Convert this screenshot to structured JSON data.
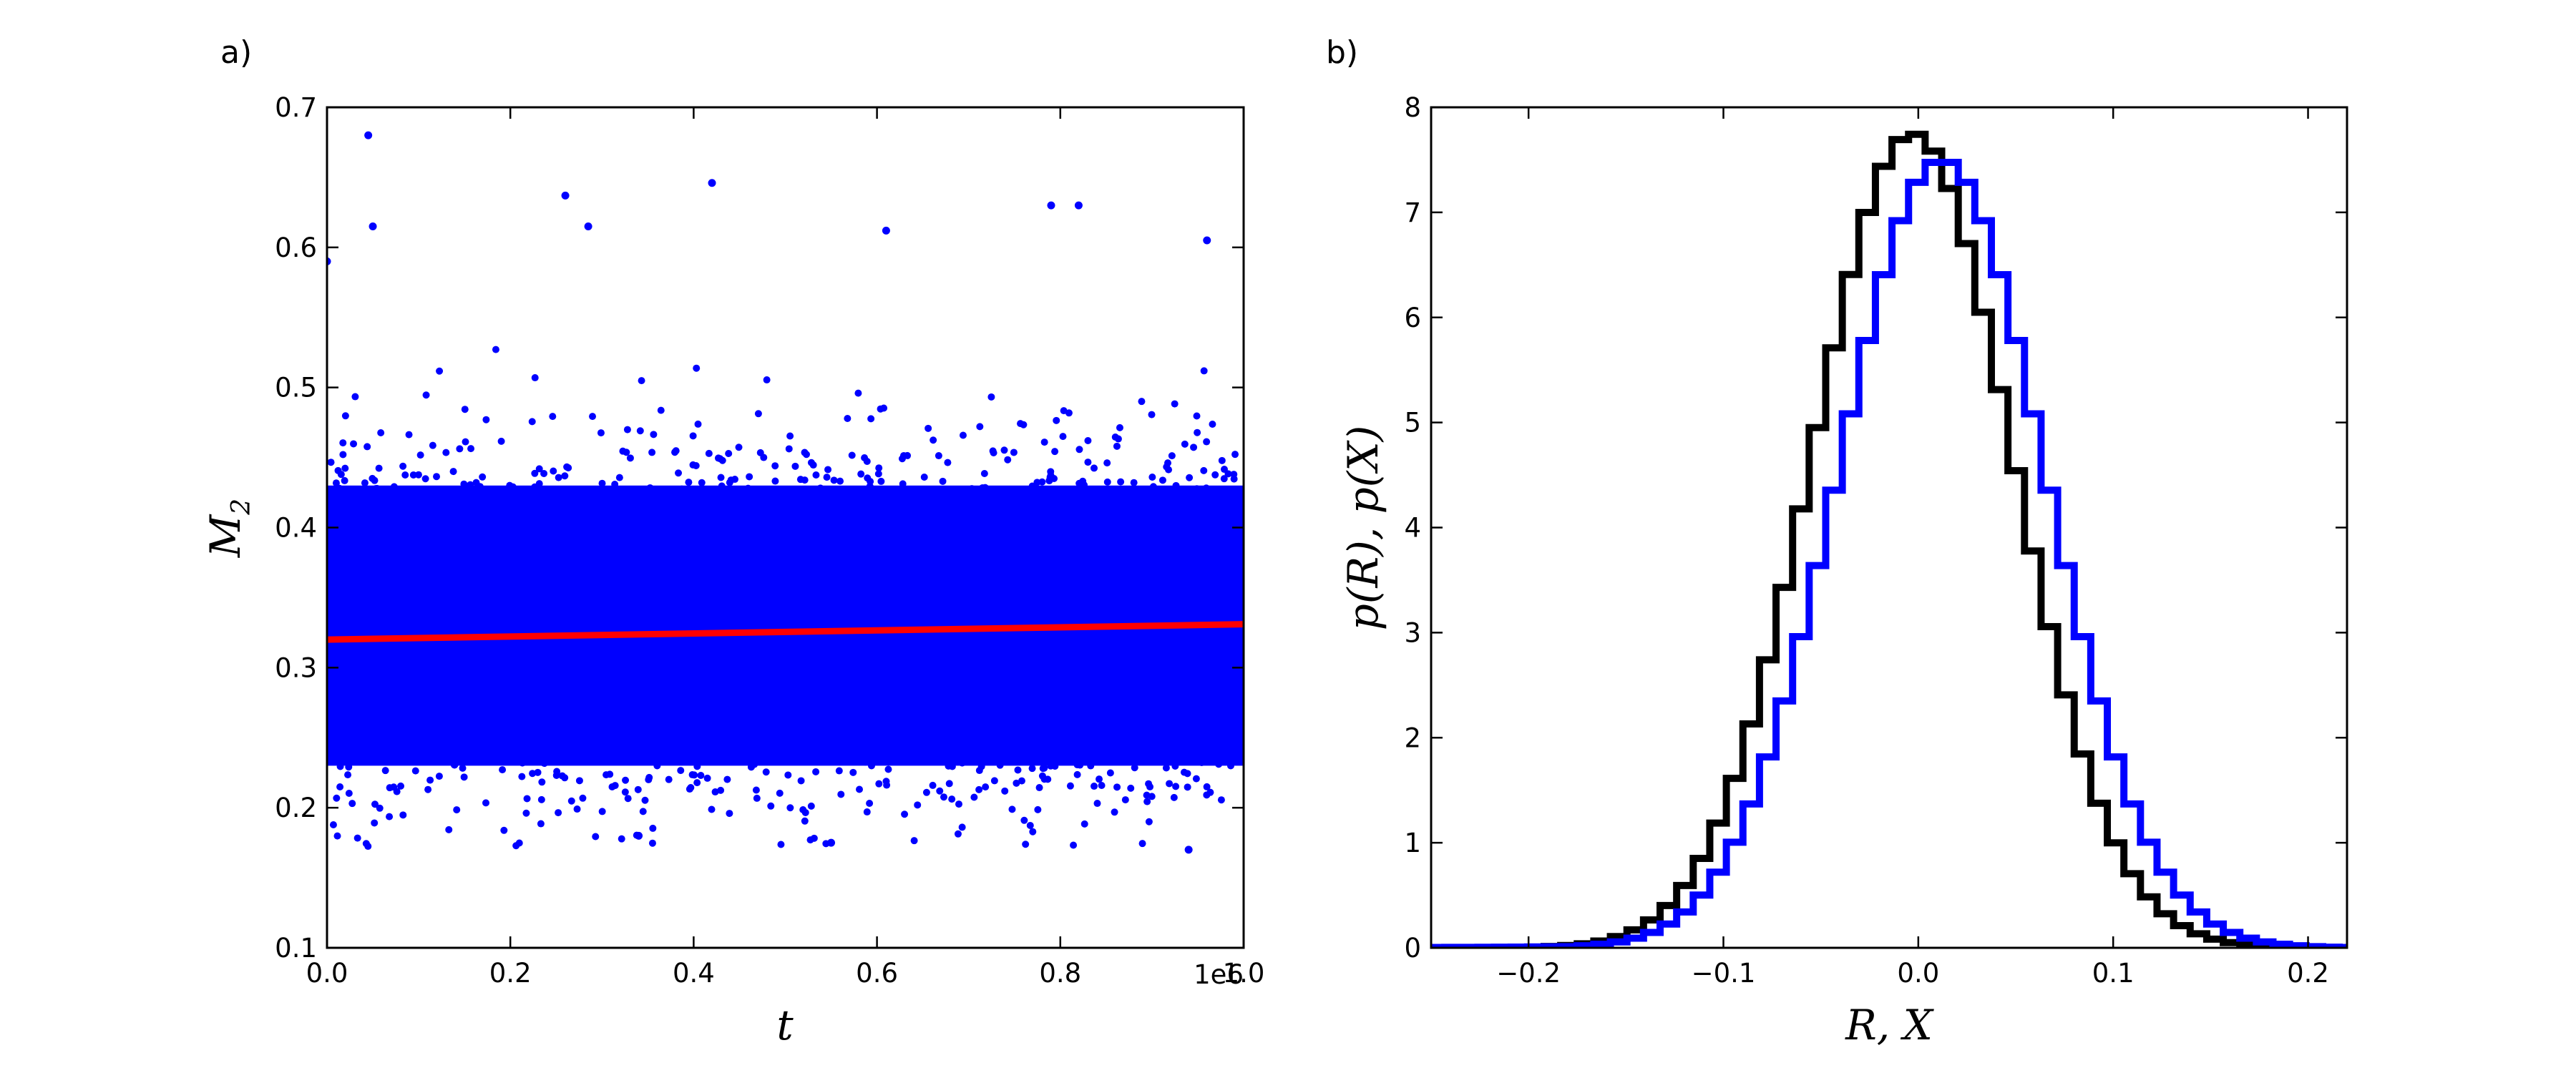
{
  "chart_data": [
    {
      "panel": "a)",
      "type": "scatter",
      "xlabel": "t",
      "ylabel_main": "M",
      "ylabel_sub": "2",
      "x_offset_text": "1e6",
      "xlim": [
        0.0,
        1.0
      ],
      "ylim": [
        0.1,
        0.7
      ],
      "x_ticks": [
        "0.0",
        "0.2",
        "0.4",
        "0.6",
        "0.8",
        "1.0"
      ],
      "y_ticks": [
        "0.1",
        "0.2",
        "0.3",
        "0.4",
        "0.5",
        "0.6",
        "0.7"
      ],
      "grid": false,
      "series": [
        {
          "kind": "scatter",
          "color": "#0000ff",
          "band": {
            "center": 0.33,
            "dense_half_width": 0.1,
            "min": 0.17,
            "max": 0.68
          }
        },
        {
          "kind": "fit_line",
          "color": "#ff0000",
          "x": [
            0.0,
            1.0
          ],
          "y": [
            0.32,
            0.331
          ]
        }
      ]
    },
    {
      "panel": "b)",
      "type": "line",
      "xlabel": "R, X",
      "ylabel": "p(R), p(X)",
      "xlim": [
        -0.25,
        0.22
      ],
      "ylim": [
        0,
        8
      ],
      "x_ticks": [
        "−0.2",
        "−0.1",
        "0.0",
        "0.1",
        "0.2"
      ],
      "y_ticks": [
        "0",
        "1",
        "2",
        "3",
        "4",
        "5",
        "6",
        "7",
        "8"
      ],
      "grid": false,
      "series": [
        {
          "kind": "step",
          "color": "#000000",
          "mean": -0.003,
          "std": 0.0515,
          "peak": 7.75,
          "left_tail_decay": 0.04
        },
        {
          "kind": "step",
          "color": "#0000ff",
          "mean": 0.012,
          "std": 0.053,
          "peak": 7.5,
          "left_tail_decay": 0.06
        }
      ]
    }
  ],
  "figure": {
    "bin_width": 0.0085
  }
}
